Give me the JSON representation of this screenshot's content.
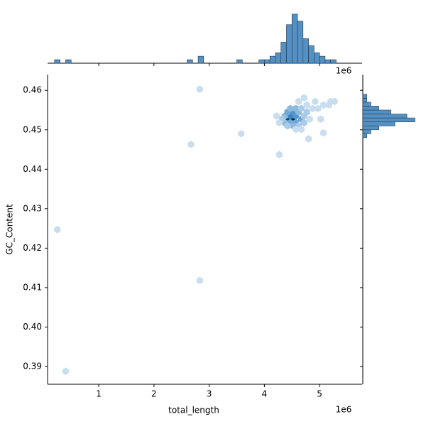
{
  "chart_data": {
    "type": "hexbin",
    "x_label": "total_length",
    "y_label": "GC_Content",
    "x_offset": "1e6",
    "xlim": [
      0.073,
      5.77
    ],
    "ylim": [
      0.3855,
      0.464
    ],
    "xticks": [
      1,
      2,
      3,
      4,
      5
    ],
    "yticks": [
      0.39,
      {
        "value": 0.4,
        "label": "0.40"
      },
      0.41,
      0.42,
      0.43,
      0.44,
      0.45,
      0.46
    ],
    "cmap": [
      "#e6eff9",
      "#2a7fc1",
      "#111111"
    ],
    "x": [
      0.25,
      0.4,
      2.67,
      2.83,
      2.83,
      3.58,
      4.27,
      4.8,
      4.42,
      4.52,
      4.47,
      4.57,
      4.37,
      4.47,
      4.57,
      4.67,
      4.37,
      4.32,
      4.27,
      4.42,
      4.52,
      4.62,
      4.47,
      4.57,
      4.67,
      4.77,
      4.72,
      4.62,
      4.52,
      4.42,
      4.72,
      4.82,
      4.77,
      4.87,
      4.97,
      5.07,
      5.17,
      5.27,
      4.62,
      4.72,
      4.92,
      5.02,
      5.07,
      4.22,
      4.57,
      4.67,
      5.2
    ],
    "y": [
      0.4247,
      0.3888,
      0.4463,
      0.4603,
      0.4118,
      0.449,
      0.4437,
      0.4477,
      0.4527,
      0.4527,
      0.4535,
      0.4535,
      0.4535,
      0.4518,
      0.4518,
      0.4527,
      0.4518,
      0.4527,
      0.4518,
      0.4545,
      0.4545,
      0.4545,
      0.4554,
      0.4554,
      0.4554,
      0.4545,
      0.4535,
      0.451,
      0.451,
      0.451,
      0.4518,
      0.4527,
      0.4563,
      0.4554,
      0.4554,
      0.4563,
      0.4563,
      0.4572,
      0.4572,
      0.4581,
      0.4572,
      0.4527,
      0.4492,
      0.4535,
      0.4501,
      0.4501,
      0.4572
    ],
    "counts": [
      1,
      1,
      1,
      1,
      1,
      1,
      1,
      1,
      8,
      9,
      6,
      5,
      3,
      4,
      4,
      4,
      3,
      2,
      1,
      4,
      5,
      3,
      3,
      3,
      2,
      2,
      2,
      2,
      3,
      2,
      2,
      1,
      1,
      1,
      1,
      1,
      1,
      1,
      1,
      1,
      1,
      1,
      1,
      1,
      1,
      1,
      1
    ],
    "hist_color": "#5590c2",
    "top_hist": {
      "ylim": [
        0,
        15
      ],
      "bins": [
        0.2,
        0.3,
        0.4,
        0.5,
        0.6,
        0.7,
        0.8,
        0.9,
        1.0,
        1.1,
        1.2,
        1.3,
        1.4,
        1.5,
        1.6,
        1.7,
        1.8,
        1.9,
        2.0,
        2.1,
        2.2,
        2.3,
        2.4,
        2.5,
        2.6,
        2.7,
        2.8,
        2.9,
        3.0,
        3.1,
        3.2,
        3.3,
        3.4,
        3.5,
        3.6,
        3.7,
        3.8,
        3.9,
        4.0,
        4.1,
        4.2,
        4.3,
        4.4,
        4.5,
        4.6,
        4.7,
        4.8,
        4.9,
        5.0,
        5.1,
        5.2,
        5.3,
        5.4
      ],
      "counts": [
        1,
        0,
        1,
        0,
        0,
        0,
        0,
        0,
        0,
        0,
        0,
        0,
        0,
        0,
        0,
        0,
        0,
        0,
        0,
        0,
        0,
        0,
        0,
        0,
        1,
        0,
        2,
        0,
        0,
        0,
        0,
        0,
        0,
        1,
        0,
        0,
        0,
        1,
        1,
        2,
        3,
        6,
        11,
        14,
        12,
        7,
        5,
        3,
        2,
        1,
        1,
        0
      ]
    },
    "right_hist": {
      "xlim": [
        0,
        14
      ],
      "bins": [
        0.448,
        0.449,
        0.45,
        0.451,
        0.452,
        0.453,
        0.454,
        0.455,
        0.456,
        0.457,
        0.458,
        0.459,
        0.46
      ],
      "counts": [
        1,
        2,
        4,
        8,
        13,
        11,
        7,
        4,
        2,
        1,
        1,
        0
      ]
    }
  }
}
